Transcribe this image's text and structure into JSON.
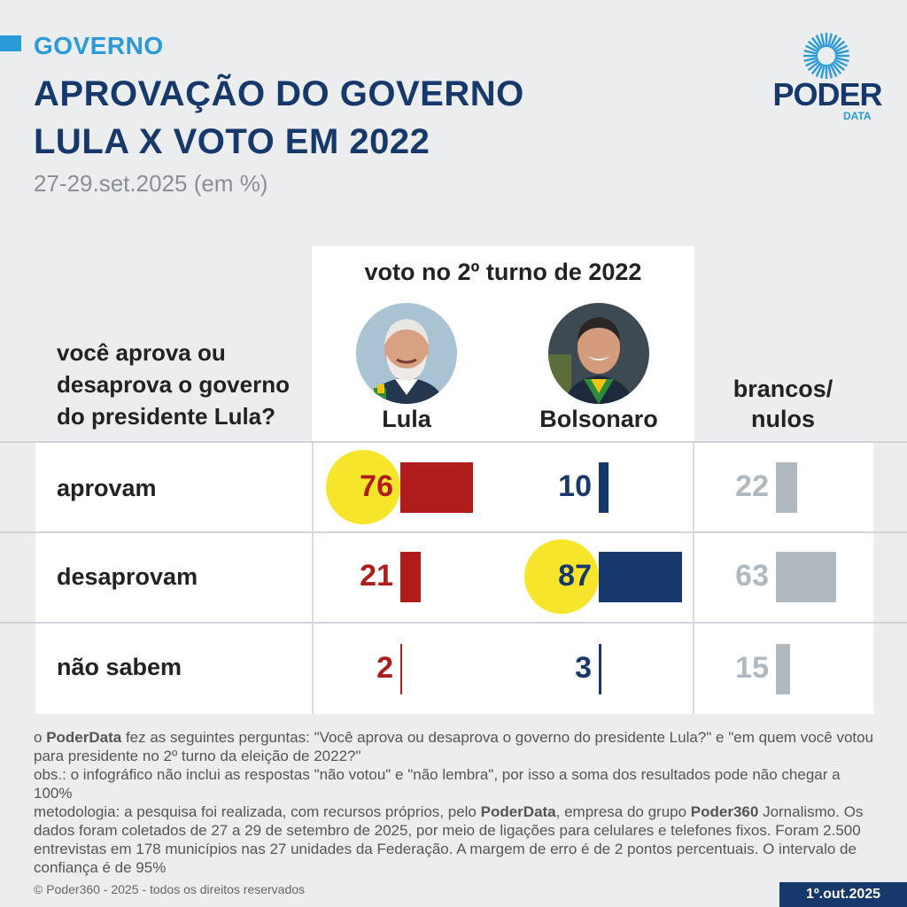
{
  "header": {
    "section": "GOVERNO",
    "title_line1": "APROVAÇÃO DO GOVERNO",
    "title_line2": "LULA X VOTO EM 2022",
    "subtitle": "27-29.set.2025 (em %)"
  },
  "logo": {
    "name": "PODER",
    "sub": "DATA"
  },
  "table": {
    "question": "você aprova ou desaprova o governo do presidente Lula?",
    "vote_header": "voto no 2º turno de 2022",
    "columns": [
      "Lula",
      "Bolsonaro",
      "brancos/ nulos"
    ],
    "rows": [
      "aprovam",
      "desaprovam",
      "não sabem"
    ]
  },
  "chart_data": {
    "type": "bar",
    "title": "APROVAÇÃO DO GOVERNO LULA X VOTO EM 2022",
    "subtitle": "27-29.set.2025 (em %)",
    "categories": [
      "aprovam",
      "desaprovam",
      "não sabem"
    ],
    "series": [
      {
        "name": "Lula",
        "values": [
          76,
          21,
          2
        ],
        "color": "#b01b1b",
        "highlight": "aprovam"
      },
      {
        "name": "Bolsonaro",
        "values": [
          10,
          87,
          3
        ],
        "color": "#16386b",
        "highlight": "desaprovam"
      },
      {
        "name": "brancos/ nulos",
        "values": [
          22,
          63,
          15
        ],
        "color": "#b0b9c0"
      }
    ],
    "highlight_color": "#f7e52c"
  },
  "notes": {
    "line1_pre": "o ",
    "line1_bold": "PoderData",
    "line1_post": " fez as seguintes perguntas: \"Você aprova ou desaprova o governo do presidente Lula?\" e \"em quem você votou para presidente no 2º turno da eleição de 2022?\"",
    "obs": "obs.: o infográfico não inclui as respostas \"não votou\" e \"não lembra\", por isso a soma dos resultados pode não chegar a 100%",
    "met_pre": "metodologia: a pesquisa foi realizada, com recursos próprios, pelo ",
    "met_bold1": "PoderData",
    "met_mid": ", empresa do grupo ",
    "met_bold2": "Poder360",
    "met_post": " Jornalismo. Os dados foram coletados de 27 a 29 de setembro de 2025, por meio de ligações para celulares e telefones fixos. Foram 2.500 entrevistas em 178 municípios nas 27 unidades da Federação. A margem de erro é de 2 pontos percentuais. O intervalo de confiança é de 95%"
  },
  "footer": {
    "copyright": "© Poder360 - 2025 - todos os direitos reservados",
    "date": "1º.out.2025"
  }
}
